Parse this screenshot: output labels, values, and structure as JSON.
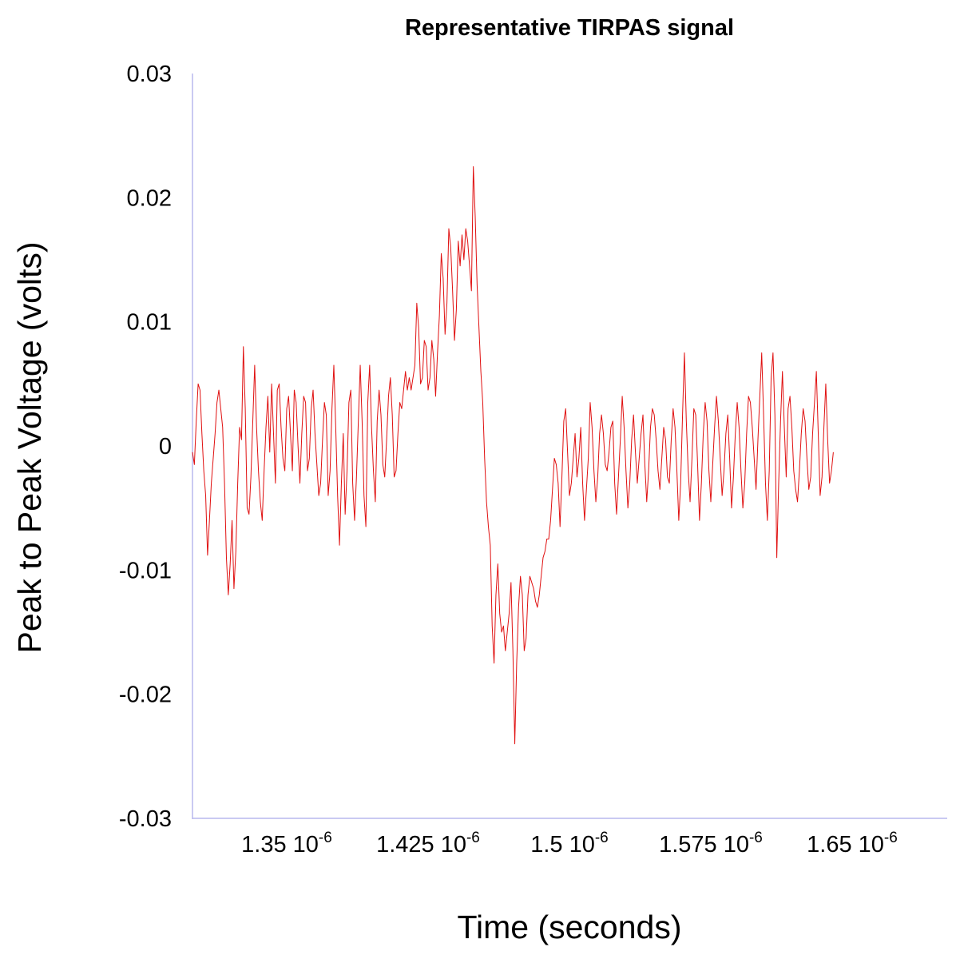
{
  "chart_data": {
    "type": "line",
    "title": "Representative TIRPAS signal",
    "xlabel": "Time (seconds)",
    "ylabel": "Peak to Peak Voltage (volts)",
    "xlim": [
      1.3e-06,
      1.7e-06
    ],
    "ylim": [
      -0.03,
      0.03
    ],
    "x_ticks": [
      {
        "value": 1.35e-06,
        "mantissa": "1.35",
        "base": "10",
        "exp": "-6"
      },
      {
        "value": 1.425e-06,
        "mantissa": "1.425",
        "base": "10",
        "exp": "-6"
      },
      {
        "value": 1.5e-06,
        "mantissa": "1.5",
        "base": "10",
        "exp": "-6"
      },
      {
        "value": 1.575e-06,
        "mantissa": "1.575",
        "base": "10",
        "exp": "-6"
      },
      {
        "value": 1.65e-06,
        "mantissa": "1.65",
        "base": "10",
        "exp": "-6"
      }
    ],
    "y_ticks": [
      {
        "value": 0.03,
        "label": "0.03"
      },
      {
        "value": 0.02,
        "label": "0.02"
      },
      {
        "value": 0.01,
        "label": "0.01"
      },
      {
        "value": 0,
        "label": "0"
      },
      {
        "value": -0.01,
        "label": "-0.01"
      },
      {
        "value": -0.02,
        "label": "-0.02"
      },
      {
        "value": -0.03,
        "label": "-0.03"
      }
    ],
    "grid": false,
    "colors": {
      "series": "#e01010",
      "axis": "#b8b8ee"
    },
    "series": [
      {
        "x_start": 1.3e-06,
        "x_step": 1e-09,
        "values": [
          -0.0005,
          -0.0015,
          0.002,
          0.005,
          0.0045,
          0.001,
          -0.002,
          -0.004,
          -0.0088,
          -0.006,
          -0.003,
          -0.001,
          0.001,
          0.0035,
          0.0045,
          0.003,
          0.0015,
          -0.003,
          -0.009,
          -0.012,
          -0.0095,
          -0.006,
          -0.0115,
          -0.0085,
          -0.003,
          0.0015,
          0.0005,
          0.008,
          0.003,
          -0.005,
          -0.0055,
          -0.0025,
          0.002,
          0.0065,
          0.0015,
          -0.002,
          -0.0045,
          -0.006,
          -0.002,
          0.0015,
          0.004,
          -0.0005,
          0.005,
          0.001,
          -0.003,
          0.0045,
          0.005,
          0.0015,
          -0.001,
          -0.002,
          0.003,
          0.004,
          0.001,
          -0.002,
          0.0045,
          0.0035,
          0.0,
          -0.003,
          0.001,
          0.004,
          0.0035,
          -0.002,
          -0.001,
          0.003,
          0.0045,
          0.001,
          -0.0015,
          -0.004,
          -0.003,
          0.0005,
          0.0035,
          0.0025,
          -0.004,
          -0.002,
          0.003,
          0.0065,
          0.0015,
          -0.004,
          -0.008,
          -0.003,
          0.001,
          -0.0055,
          -0.002,
          0.0035,
          0.0045,
          -0.003,
          -0.006,
          -0.0025,
          0.002,
          0.0065,
          0.002,
          -0.004,
          -0.0065,
          0.0035,
          0.0065,
          0.0015,
          -0.002,
          -0.0045,
          0.002,
          0.0045,
          0.0025,
          -0.0015,
          -0.0025,
          0.0005,
          0.004,
          0.0055,
          0.0025,
          -0.0025,
          -0.002,
          0.001,
          0.0035,
          0.003,
          0.0045,
          0.006,
          0.0045,
          0.0055,
          0.0045,
          0.0055,
          0.0065,
          0.0115,
          0.0095,
          0.005,
          0.0055,
          0.0085,
          0.008,
          0.0045,
          0.0055,
          0.0085,
          0.007,
          0.004,
          0.0075,
          0.0105,
          0.0155,
          0.0135,
          0.009,
          0.0115,
          0.0175,
          0.016,
          0.0125,
          0.0085,
          0.011,
          0.0165,
          0.0145,
          0.017,
          0.015,
          0.0175,
          0.0165,
          0.0145,
          0.0125,
          0.0225,
          0.0185,
          0.013,
          0.0095,
          0.006,
          0.0035,
          -0.001,
          -0.0045,
          -0.0065,
          -0.008,
          -0.0145,
          -0.0175,
          -0.012,
          -0.0095,
          -0.0135,
          -0.015,
          -0.0145,
          -0.0165,
          -0.015,
          -0.0135,
          -0.011,
          -0.0165,
          -0.024,
          -0.0175,
          -0.013,
          -0.0105,
          -0.012,
          -0.0165,
          -0.0155,
          -0.012,
          -0.0105,
          -0.011,
          -0.0115,
          -0.0125,
          -0.013,
          -0.012,
          -0.0105,
          -0.009,
          -0.0085,
          -0.0075,
          -0.0075,
          -0.006,
          -0.0035,
          -0.001,
          -0.0015,
          -0.003,
          -0.0065,
          -0.0025,
          0.002,
          0.003,
          -0.0005,
          -0.004,
          -0.003,
          -0.001,
          0.001,
          -0.0025,
          -0.001,
          0.0015,
          -0.003,
          -0.006,
          -0.0035,
          -0.001,
          0.0035,
          0.0015,
          -0.002,
          -0.0045,
          -0.0025,
          0.001,
          0.0025,
          0.001,
          -0.0015,
          -0.002,
          -0.0005,
          0.0015,
          0.002,
          -0.003,
          -0.0055,
          -0.0025,
          0.0005,
          0.004,
          0.0015,
          -0.002,
          -0.005,
          -0.003,
          0.0005,
          0.0025,
          -0.0005,
          -0.003,
          -0.001,
          0.001,
          0.0025,
          -0.0015,
          -0.0045,
          -0.002,
          0.0015,
          0.003,
          0.0025,
          0.0005,
          -0.002,
          -0.0035,
          -0.001,
          0.0015,
          0.0005,
          -0.0025,
          -0.003,
          0.0005,
          0.003,
          0.0015,
          -0.002,
          -0.006,
          -0.003,
          0.0025,
          0.0075,
          0.002,
          -0.002,
          -0.0045,
          -0.001,
          0.003,
          0.0025,
          -0.0015,
          -0.006,
          -0.003,
          0.001,
          0.0035,
          0.002,
          -0.002,
          -0.0045,
          -0.0015,
          0.0015,
          0.004,
          0.002,
          -0.001,
          -0.004,
          -0.002,
          0.001,
          0.0025,
          -0.001,
          -0.005,
          -0.0025,
          0.001,
          0.0035,
          0.0015,
          -0.002,
          -0.005,
          -0.003,
          0.001,
          0.004,
          0.0035,
          0.0015,
          -0.001,
          -0.0035,
          0.0005,
          0.004,
          0.0075,
          0.0025,
          -0.003,
          -0.006,
          -0.002,
          0.0055,
          0.0075,
          0.0025,
          -0.009,
          -0.003,
          0.002,
          0.006,
          0.0015,
          -0.0025,
          0.003,
          0.004,
          0.0015,
          -0.002,
          -0.0035,
          -0.0045,
          -0.002,
          0.001,
          0.003,
          0.002,
          -0.001,
          -0.0035,
          -0.0025,
          0.001,
          0.0035,
          0.006,
          0.001,
          -0.004,
          -0.0025,
          0.0015,
          0.005,
          0.0005,
          -0.003,
          -0.002,
          -0.0005
        ]
      }
    ]
  }
}
